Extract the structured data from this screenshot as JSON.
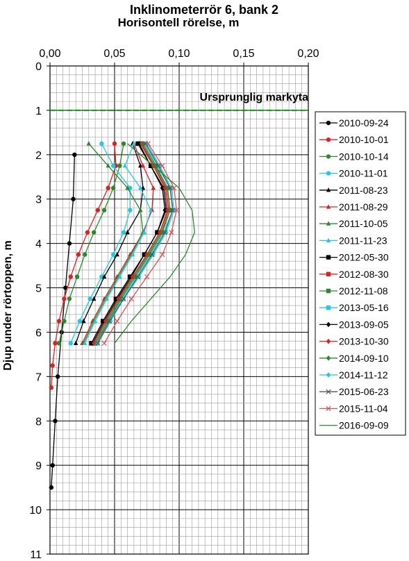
{
  "chart_data": {
    "type": "line",
    "title": "Inklinometerrör 6, bank 2",
    "subtitle": "Horisontell rörelse, m",
    "xlabel": "Horisontell rörelse, m",
    "ylabel": "Djup under rörtoppen, m",
    "xlim": [
      0,
      0.2
    ],
    "ylim": [
      0,
      11
    ],
    "y_inverted": true,
    "x_axis_position": "top",
    "x_ticks": [
      0,
      0.05,
      0.1,
      0.15,
      0.2
    ],
    "x_tick_labels": [
      "0,00",
      "0,05",
      "0,10",
      "0,15",
      "0,20"
    ],
    "y_ticks": [
      0,
      1,
      2,
      3,
      4,
      5,
      6,
      7,
      8,
      9,
      10,
      11
    ],
    "y_tick_labels": [
      "0",
      "1",
      "2",
      "3",
      "4",
      "5",
      "6",
      "7",
      "8",
      "9",
      "10",
      "11"
    ],
    "grid": true,
    "legend_position": "right",
    "reference_line": {
      "label": "Ursprunglig markyta",
      "depth": 1,
      "color": "#00a000",
      "style": "dashed"
    },
    "series": [
      {
        "name": "2010-09-24",
        "color": "#000000",
        "marker": "circle",
        "x": [
          0.019,
          0.018,
          0.015,
          0.012,
          0.009,
          0.006,
          0.004,
          0.002,
          0.001
        ],
        "y": [
          2,
          3,
          4,
          5,
          6,
          7,
          8,
          9,
          9.5
        ]
      },
      {
        "name": "2010-10-01",
        "color": "#e02020",
        "marker": "circle",
        "x": [
          0.05,
          0.051,
          0.045,
          0.037,
          0.029,
          0.022,
          0.016,
          0.011,
          0.007,
          0.004,
          0.002,
          0.001
        ],
        "y": [
          1.75,
          2.25,
          2.75,
          3.25,
          3.75,
          4.25,
          4.75,
          5.25,
          5.75,
          6.25,
          6.75,
          7.25
        ]
      },
      {
        "name": "2010-10-14",
        "color": "#2a8a2a",
        "marker": "circle",
        "x": [
          0.057,
          0.054,
          0.049,
          0.042,
          0.034,
          0.027,
          0.021,
          0.015,
          0.011,
          0.007
        ],
        "y": [
          1.75,
          2.25,
          2.75,
          3.25,
          3.75,
          4.25,
          4.75,
          5.25,
          5.75,
          6.25
        ]
      },
      {
        "name": "2010-11-01",
        "color": "#20c8e8",
        "marker": "circle",
        "x": [
          0.04,
          0.049,
          0.062,
          0.062,
          0.057,
          0.049,
          0.04,
          0.031,
          0.023,
          0.016
        ],
        "y": [
          1.75,
          2.25,
          2.75,
          3.25,
          3.75,
          4.25,
          4.75,
          5.25,
          5.75,
          6.25
        ]
      },
      {
        "name": "2011-08-23",
        "color": "#000000",
        "marker": "triangle",
        "x": [
          0.064,
          0.07,
          0.072,
          0.07,
          0.06,
          0.052,
          0.042,
          0.034,
          0.026,
          0.02
        ],
        "y": [
          1.75,
          2.25,
          2.75,
          3.25,
          3.75,
          4.25,
          4.75,
          5.25,
          5.75,
          6.25
        ]
      },
      {
        "name": "2011-08-29",
        "color": "#e02020",
        "marker": "triangle",
        "x": [
          0.065,
          0.072,
          0.08,
          0.079,
          0.072,
          0.062,
          0.052,
          0.042,
          0.033,
          0.025
        ],
        "y": [
          1.75,
          2.25,
          2.75,
          3.25,
          3.75,
          4.25,
          4.75,
          5.25,
          5.75,
          6.25
        ]
      },
      {
        "name": "2011-10-05",
        "color": "#2a8a2a",
        "marker": "triangle",
        "x": [
          0.03,
          0.045,
          0.06,
          0.07,
          0.072,
          0.063,
          0.053,
          0.043,
          0.034,
          0.026
        ],
        "y": [
          1.75,
          2.25,
          2.75,
          3.25,
          3.75,
          4.25,
          4.75,
          5.25,
          5.75,
          6.25
        ]
      },
      {
        "name": "2011-11-23",
        "color": "#20c8e8",
        "marker": "triangle",
        "x": [
          0.065,
          0.058,
          0.07,
          0.078,
          0.073,
          0.064,
          0.054,
          0.044,
          0.035,
          0.027
        ],
        "y": [
          1.75,
          2.25,
          2.75,
          3.25,
          3.75,
          4.25,
          4.75,
          5.25,
          5.75,
          6.25
        ]
      },
      {
        "name": "2012-05-30",
        "color": "#000000",
        "marker": "square",
        "x": [
          0.068,
          0.078,
          0.088,
          0.09,
          0.083,
          0.073,
          0.062,
          0.051,
          0.041,
          0.032
        ],
        "y": [
          1.75,
          2.25,
          2.75,
          3.25,
          3.75,
          4.25,
          4.75,
          5.25,
          5.75,
          6.25
        ]
      },
      {
        "name": "2012-08-30",
        "color": "#e02020",
        "marker": "square",
        "x": [
          0.07,
          0.08,
          0.09,
          0.092,
          0.085,
          0.075,
          0.064,
          0.053,
          0.043,
          0.034
        ],
        "y": [
          1.75,
          2.25,
          2.75,
          3.25,
          3.75,
          4.25,
          4.75,
          5.25,
          5.75,
          6.25
        ]
      },
      {
        "name": "2012-11-08",
        "color": "#2a8a2a",
        "marker": "square",
        "x": [
          0.071,
          0.081,
          0.091,
          0.093,
          0.086,
          0.076,
          0.065,
          0.054,
          0.044,
          0.035
        ],
        "y": [
          1.75,
          2.25,
          2.75,
          3.25,
          3.75,
          4.25,
          4.75,
          5.25,
          5.75,
          6.25
        ]
      },
      {
        "name": "2013-05-16",
        "color": "#20c8e8",
        "marker": "square",
        "x": [
          0.073,
          0.083,
          0.093,
          0.095,
          0.088,
          0.078,
          0.067,
          0.056,
          0.045,
          0.036
        ],
        "y": [
          1.75,
          2.25,
          2.75,
          3.25,
          3.75,
          4.25,
          4.75,
          5.25,
          5.75,
          6.25
        ]
      },
      {
        "name": "2013-09-05",
        "color": "#000000",
        "marker": "diamond",
        "x": [
          0.069,
          0.078,
          0.087,
          0.089,
          0.083,
          0.073,
          0.063,
          0.052,
          0.042,
          0.033
        ],
        "y": [
          1.75,
          2.25,
          2.75,
          3.25,
          3.75,
          4.25,
          4.75,
          5.25,
          5.75,
          6.25
        ]
      },
      {
        "name": "2013-10-30",
        "color": "#e02020",
        "marker": "diamond",
        "x": [
          0.071,
          0.08,
          0.089,
          0.091,
          0.085,
          0.075,
          0.064,
          0.053,
          0.043,
          0.034
        ],
        "y": [
          1.75,
          2.25,
          2.75,
          3.25,
          3.75,
          4.25,
          4.75,
          5.25,
          5.75,
          6.25
        ]
      },
      {
        "name": "2014-09-10",
        "color": "#2a8a2a",
        "marker": "diamond",
        "x": [
          0.072,
          0.082,
          0.091,
          0.093,
          0.087,
          0.077,
          0.066,
          0.055,
          0.045,
          0.036
        ],
        "y": [
          1.75,
          2.25,
          2.75,
          3.25,
          3.75,
          4.25,
          4.75,
          5.25,
          5.75,
          6.25
        ]
      },
      {
        "name": "2014-11-12",
        "color": "#20c8e8",
        "marker": "diamond",
        "x": [
          0.075,
          0.085,
          0.094,
          0.096,
          0.09,
          0.08,
          0.069,
          0.057,
          0.047,
          0.037
        ],
        "y": [
          1.75,
          2.25,
          2.75,
          3.25,
          3.75,
          4.25,
          4.75,
          5.25,
          5.75,
          6.25
        ]
      },
      {
        "name": "2015-06-23",
        "color": "#555555",
        "marker": "x",
        "x": [
          0.074,
          0.084,
          0.093,
          0.095,
          0.089,
          0.079,
          0.068,
          0.057,
          0.046,
          0.037
        ],
        "y": [
          1.75,
          2.25,
          2.75,
          3.25,
          3.75,
          4.25,
          4.75,
          5.25,
          5.75,
          6.25
        ]
      },
      {
        "name": "2015-11-04",
        "color": "#e05050",
        "marker": "x",
        "x": [
          0.076,
          0.087,
          0.096,
          0.098,
          0.094,
          0.087,
          0.075,
          0.063,
          0.052,
          0.042
        ],
        "y": [
          1.75,
          2.25,
          2.75,
          3.25,
          3.75,
          4.25,
          4.75,
          5.25,
          5.75,
          6.25
        ]
      },
      {
        "name": "2016-09-09",
        "color": "#2a8a2a",
        "marker": "none",
        "x": [
          0.06,
          0.08,
          0.1,
          0.11,
          0.112,
          0.105,
          0.093,
          0.078,
          0.063,
          0.05
        ],
        "y": [
          1.75,
          2.25,
          2.75,
          3.25,
          3.75,
          4.25,
          4.75,
          5.25,
          5.75,
          6.25
        ]
      }
    ]
  }
}
